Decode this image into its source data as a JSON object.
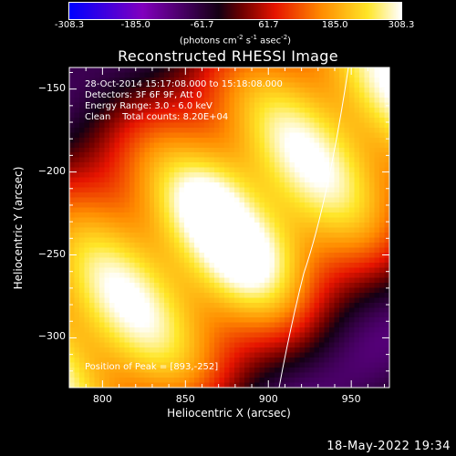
{
  "colorbar": {
    "tick_labels": [
      "-308.3",
      "-185.0",
      "-61.7",
      "61.7",
      "185.0",
      "308.3"
    ],
    "tick_values": [
      -308.3,
      -185.0,
      -61.7,
      61.7,
      185.0,
      308.3
    ],
    "range": [
      -308.3,
      308.3
    ],
    "unit_prefix": "(photons cm",
    "unit_exp1": "-2",
    "unit_mid": " s",
    "unit_exp2": "-1",
    "unit_mid2": " asec",
    "unit_exp3": "-2",
    "unit_suffix": ")",
    "colormap": "rhessi-fire"
  },
  "chart_data": {
    "type": "heatmap",
    "title": "Reconstructed RHESSI Image",
    "xlabel": "Heliocentric X (arcsec)",
    "ylabel": "Heliocentric Y (arcsec)",
    "xlim": [
      780,
      973
    ],
    "ylim": [
      -330,
      -137
    ],
    "x_ticks": [
      800,
      850,
      900,
      950
    ],
    "x_tick_labels": [
      "800",
      "850",
      "900",
      "950"
    ],
    "y_ticks": [
      -150,
      -200,
      -250,
      -300
    ],
    "y_tick_labels": [
      "−150",
      "−200",
      "−250",
      "−300"
    ],
    "peak_position": [
      893,
      -252
    ],
    "value_range": [
      -308.3,
      308.3
    ],
    "grid": false,
    "limb_line_color": "#ffffff"
  },
  "annotations": {
    "time_range": "28-Oct-2014 15:17:08.000 to 15:18:08.000",
    "detectors": "Detectors: 3F 6F 9F, Att 0",
    "energy": "Energy Range: 3.0 - 6.0 keV",
    "clean": "Clean    Total counts: 8.20E+04",
    "peak": "Position of Peak = [893,-252]"
  },
  "footer": {
    "timestamp": "18-May-2022 19:34"
  }
}
